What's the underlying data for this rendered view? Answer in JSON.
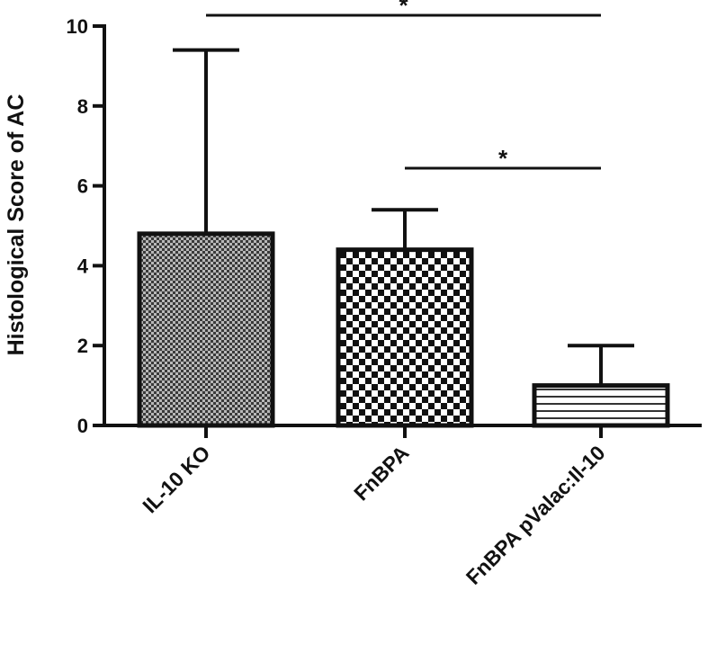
{
  "chart_data": {
    "type": "bar",
    "title": "",
    "xlabel": "",
    "ylabel": "Histological Score of AC",
    "ylim": [
      0,
      10
    ],
    "yticks": [
      "0",
      "2",
      "4",
      "6",
      "8",
      "10"
    ],
    "categories": [
      "IL-10 KO",
      "FnBPA",
      "FnBPA pValac:Il-10"
    ],
    "values": [
      4.8,
      4.4,
      1.0
    ],
    "errors": [
      4.6,
      1.0,
      1.0
    ],
    "patterns": [
      "fine-crosshatch",
      "checkerboard",
      "horizontal-lines"
    ],
    "significance": [
      {
        "from": "IL-10 KO",
        "to": "FnBPA pValac:Il-10",
        "label": "*"
      },
      {
        "from": "FnBPA",
        "to": "FnBPA pValac:Il-10",
        "label": "*"
      }
    ],
    "grid": false,
    "legend": "none",
    "colors": {
      "ink": "#111111",
      "background": "#ffffff"
    }
  }
}
